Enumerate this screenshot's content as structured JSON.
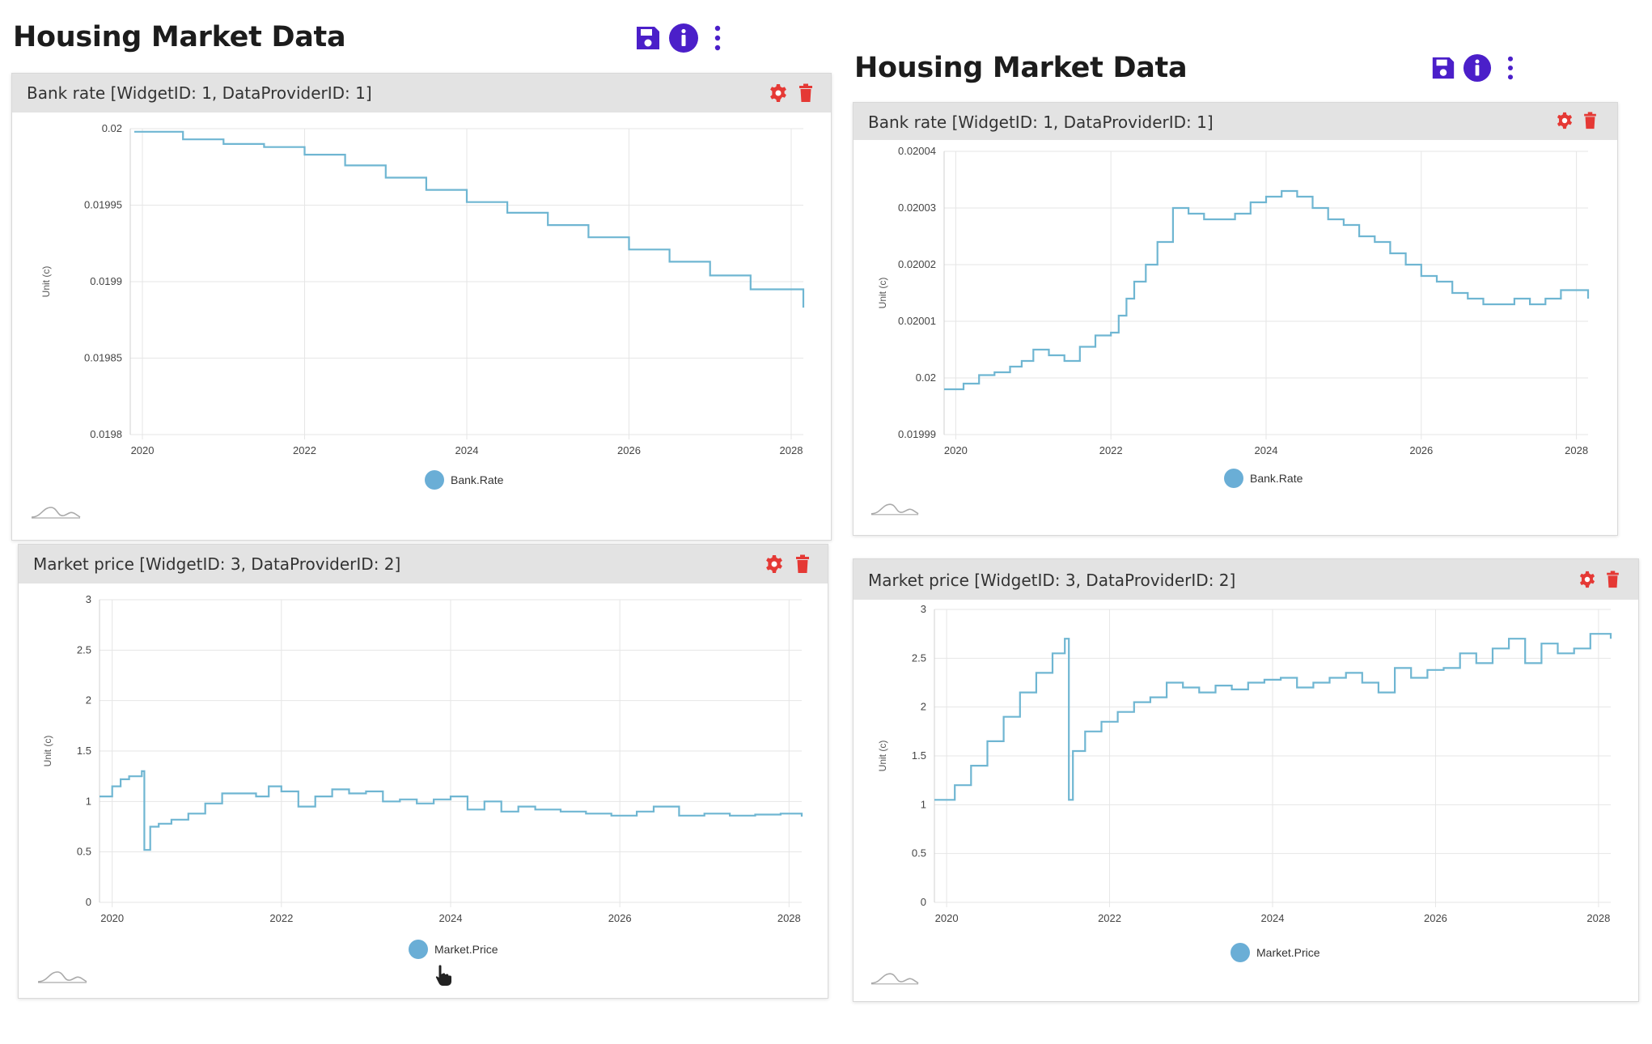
{
  "colors": {
    "accent": "#4b1fc9",
    "danger": "#e53935",
    "series": "#6fb6d2",
    "legend_dot": "#6aaed6",
    "header_bg": "#e3e3e3",
    "grid": "#e6e6e6"
  },
  "dashboards": [
    {
      "title": "Housing Market Data",
      "toolbar": {
        "icons": [
          "save-icon",
          "info-icon",
          "more-vertical-icon"
        ]
      },
      "widgets": [
        {
          "title": "Bank rate [WidgetID: 1, DataProviderID: 1]",
          "icons": [
            "gear-icon",
            "trash-icon"
          ],
          "ylabel": "Unit (c)",
          "legend": "Bank.Rate",
          "ticks_y": [
            "0.0198",
            "0.01985",
            "0.0199",
            "0.01995",
            "0.02"
          ],
          "ticks_x": [
            "2020",
            "2022",
            "2024",
            "2026",
            "2028"
          ]
        },
        {
          "title": "Market price [WidgetID: 3, DataProviderID: 2]",
          "icons": [
            "gear-icon",
            "trash-icon"
          ],
          "ylabel": "Unit (c)",
          "legend": "Market.Price",
          "ticks_y": [
            "0",
            "0.5",
            "1",
            "1.5",
            "2",
            "2.5",
            "3"
          ],
          "ticks_x": [
            "2020",
            "2022",
            "2024",
            "2026",
            "2028"
          ]
        }
      ]
    },
    {
      "title": "Housing Market Data",
      "toolbar": {
        "icons": [
          "save-icon",
          "info-icon",
          "more-vertical-icon"
        ]
      },
      "widgets": [
        {
          "title": "Bank rate [WidgetID: 1, DataProviderID: 1]",
          "icons": [
            "gear-icon",
            "trash-icon"
          ],
          "ylabel": "Unit (c)",
          "legend": "Bank.Rate",
          "ticks_y": [
            "0.01999",
            "0.02",
            "0.02001",
            "0.02002",
            "0.02003",
            "0.02004"
          ],
          "ticks_x": [
            "2020",
            "2022",
            "2024",
            "2026",
            "2028"
          ]
        },
        {
          "title": "Market price [WidgetID: 3, DataProviderID: 2]",
          "icons": [
            "gear-icon",
            "trash-icon"
          ],
          "ylabel": "Unit (c)",
          "legend": "Market.Price",
          "ticks_y": [
            "0",
            "0.5",
            "1",
            "1.5",
            "2",
            "2.5",
            "3"
          ],
          "ticks_x": [
            "2020",
            "2022",
            "2024",
            "2026",
            "2028"
          ]
        }
      ]
    }
  ],
  "chart_data": [
    {
      "type": "line",
      "step": true,
      "series": [
        {
          "name": "Bank.Rate",
          "x": [
            2019.9,
            2020.5,
            2021.0,
            2021.5,
            2022.0,
            2022.5,
            2023.0,
            2023.5,
            2024.0,
            2024.5,
            2025.0,
            2025.5,
            2026.0,
            2026.5,
            2027.0,
            2027.5,
            2028.15
          ],
          "y": [
            0.019998,
            0.019993,
            0.01999,
            0.019988,
            0.019983,
            0.019976,
            0.019968,
            0.01996,
            0.019952,
            0.019945,
            0.019937,
            0.019929,
            0.019921,
            0.019913,
            0.019904,
            0.019895,
            0.019883
          ]
        }
      ],
      "xlim": [
        2019.85,
        2028.15
      ],
      "ylim": [
        0.0198,
        0.02
      ],
      "ylabel": "Unit (c)",
      "grid": true,
      "legend": "bottom"
    },
    {
      "type": "line",
      "step": true,
      "series": [
        {
          "name": "Market.Price",
          "x": [
            2019.85,
            2020.0,
            2020.1,
            2020.2,
            2020.35,
            2020.38,
            2020.45,
            2020.55,
            2020.7,
            2020.9,
            2021.1,
            2021.3,
            2021.5,
            2021.7,
            2021.85,
            2022.0,
            2022.2,
            2022.4,
            2022.6,
            2022.8,
            2023.0,
            2023.2,
            2023.4,
            2023.6,
            2023.8,
            2024.0,
            2024.2,
            2024.4,
            2024.6,
            2024.8,
            2025.0,
            2025.3,
            2025.6,
            2025.9,
            2026.2,
            2026.4,
            2026.7,
            2027.0,
            2027.3,
            2027.6,
            2027.9,
            2028.15
          ],
          "y": [
            1.05,
            1.15,
            1.22,
            1.25,
            1.3,
            0.52,
            0.75,
            0.78,
            0.82,
            0.88,
            0.98,
            1.08,
            1.08,
            1.05,
            1.15,
            1.1,
            0.95,
            1.05,
            1.12,
            1.08,
            1.1,
            1.0,
            1.02,
            0.98,
            1.02,
            1.05,
            0.92,
            1.0,
            0.9,
            0.95,
            0.92,
            0.9,
            0.88,
            0.86,
            0.9,
            0.95,
            0.86,
            0.88,
            0.86,
            0.87,
            0.88,
            0.85
          ]
        }
      ],
      "xlim": [
        2019.85,
        2028.15
      ],
      "ylim": [
        0,
        3
      ],
      "ylabel": "Unit (c)",
      "grid": true,
      "legend": "bottom"
    },
    {
      "type": "line",
      "step": true,
      "series": [
        {
          "name": "Bank.Rate",
          "x": [
            2019.85,
            2020.1,
            2020.3,
            2020.5,
            2020.7,
            2020.85,
            2021.0,
            2021.2,
            2021.4,
            2021.6,
            2021.8,
            2022.0,
            2022.1,
            2022.2,
            2022.3,
            2022.45,
            2022.6,
            2022.8,
            2023.0,
            2023.2,
            2023.4,
            2023.6,
            2023.8,
            2024.0,
            2024.2,
            2024.4,
            2024.6,
            2024.8,
            2025.0,
            2025.2,
            2025.4,
            2025.6,
            2025.8,
            2026.0,
            2026.2,
            2026.4,
            2026.6,
            2026.8,
            2027.0,
            2027.2,
            2027.4,
            2027.6,
            2027.8,
            2028.15
          ],
          "y": [
            0.019998,
            0.019999,
            0.0200005,
            0.020001,
            0.020002,
            0.020003,
            0.020005,
            0.020004,
            0.020003,
            0.0200055,
            0.0200075,
            0.020008,
            0.020011,
            0.020014,
            0.020017,
            0.02002,
            0.020024,
            0.02003,
            0.020029,
            0.020028,
            0.020028,
            0.020029,
            0.020031,
            0.020032,
            0.020033,
            0.020032,
            0.02003,
            0.020028,
            0.020027,
            0.020025,
            0.020024,
            0.020022,
            0.02002,
            0.020018,
            0.020017,
            0.020015,
            0.020014,
            0.020013,
            0.020013,
            0.020014,
            0.020013,
            0.020014,
            0.0200155,
            0.020014
          ]
        }
      ],
      "xlim": [
        2019.85,
        2028.15
      ],
      "ylim": [
        0.01999,
        0.02004
      ],
      "ylabel": "Unit (c)",
      "grid": true,
      "legend": "bottom"
    },
    {
      "type": "line",
      "step": true,
      "series": [
        {
          "name": "Market.Price",
          "x": [
            2019.85,
            2020.1,
            2020.3,
            2020.5,
            2020.7,
            2020.9,
            2021.1,
            2021.3,
            2021.45,
            2021.5,
            2021.55,
            2021.7,
            2021.9,
            2022.1,
            2022.3,
            2022.5,
            2022.7,
            2022.9,
            2023.1,
            2023.3,
            2023.5,
            2023.7,
            2023.9,
            2024.1,
            2024.3,
            2024.5,
            2024.7,
            2024.9,
            2025.1,
            2025.3,
            2025.5,
            2025.7,
            2025.9,
            2026.1,
            2026.3,
            2026.5,
            2026.7,
            2026.9,
            2027.1,
            2027.3,
            2027.5,
            2027.7,
            2027.9,
            2028.15
          ],
          "y": [
            1.05,
            1.2,
            1.4,
            1.65,
            1.9,
            2.15,
            2.35,
            2.55,
            2.7,
            1.05,
            1.55,
            1.75,
            1.85,
            1.95,
            2.05,
            2.1,
            2.25,
            2.2,
            2.15,
            2.22,
            2.18,
            2.25,
            2.28,
            2.3,
            2.2,
            2.25,
            2.3,
            2.35,
            2.25,
            2.15,
            2.4,
            2.3,
            2.38,
            2.4,
            2.55,
            2.45,
            2.6,
            2.7,
            2.45,
            2.65,
            2.55,
            2.6,
            2.75,
            2.7
          ]
        }
      ],
      "xlim": [
        2019.85,
        2028.15
      ],
      "ylim": [
        0,
        3
      ],
      "ylabel": "Unit (c)",
      "grid": true,
      "legend": "bottom"
    }
  ]
}
